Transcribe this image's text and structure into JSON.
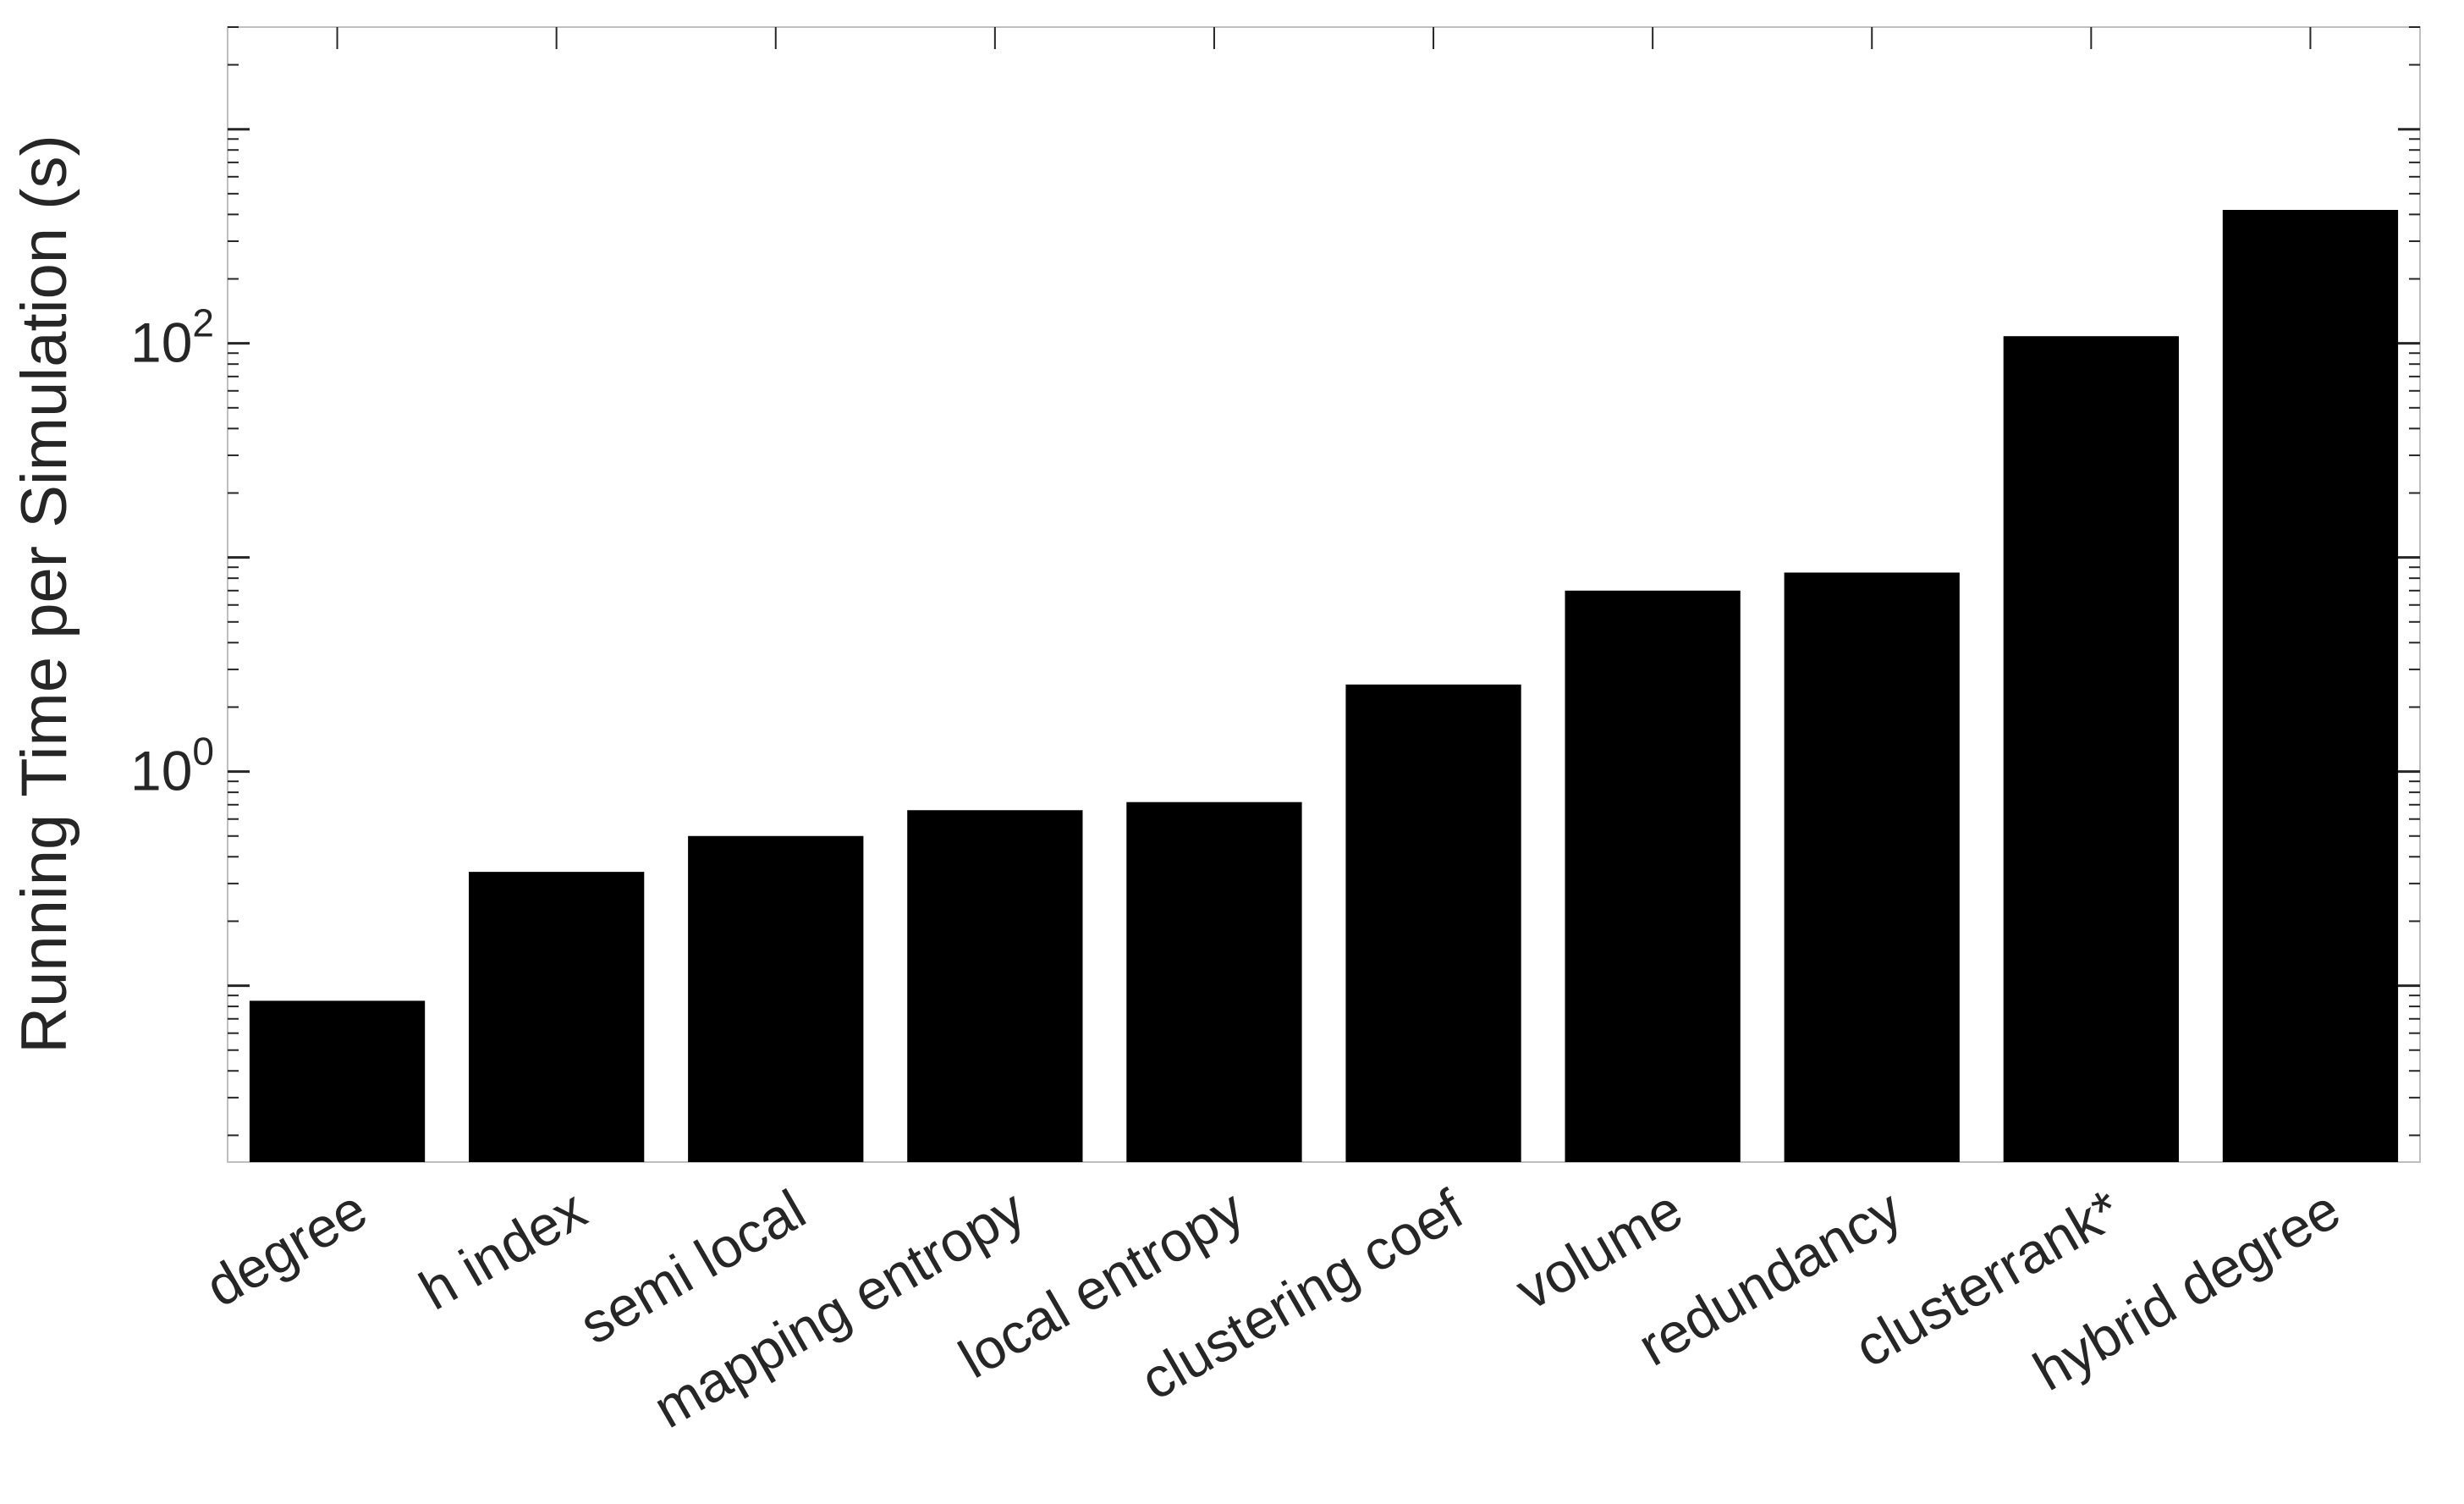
{
  "chart_data": {
    "type": "bar",
    "title": "",
    "xlabel": "",
    "ylabel": "Running Time per Simulation (s)",
    "yscale": "log",
    "ylim": [
      0.015,
      3000
    ],
    "yticks": [
      {
        "value": 1,
        "base": "10",
        "exponent": "0"
      },
      {
        "value": 100,
        "base": "10",
        "exponent": "2"
      }
    ],
    "grid": false,
    "legend": "none",
    "categories": [
      "degree",
      "h index",
      "semi local",
      "mapping entropy",
      "local entropy",
      "clustering coef",
      "volume",
      "redundancy",
      "clusterrank*",
      "hybrid degree"
    ],
    "values": [
      0.085,
      0.34,
      0.5,
      0.66,
      0.72,
      2.55,
      7.0,
      8.5,
      108,
      420
    ],
    "colors": {
      "bar": "#000000",
      "axis": "#262626",
      "box": "#bfbfbf",
      "background": "#ffffff"
    }
  }
}
